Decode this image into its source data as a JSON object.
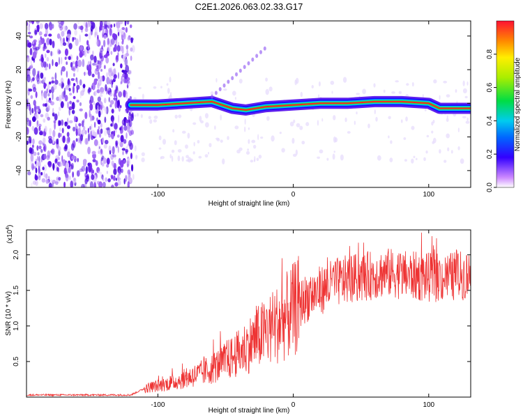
{
  "title": "C2E1.2026.063.02.33.G17",
  "chart_data": [
    {
      "type": "heatmap",
      "xlabel": "Height of straight line (km)",
      "ylabel": "Frequency (Hz)",
      "xlim": [
        -197,
        131
      ],
      "ylim": [
        -50,
        49
      ],
      "xticks": [
        -100,
        0,
        100
      ],
      "yticks": [
        -40,
        -20,
        0,
        20,
        40
      ],
      "noise_region_x": [
        -197,
        -118
      ],
      "signal_track": [
        {
          "x": -120,
          "y": -1
        },
        {
          "x": -100,
          "y": -1
        },
        {
          "x": -80,
          "y": 0
        },
        {
          "x": -60,
          "y": 1
        },
        {
          "x": -45,
          "y": -3
        },
        {
          "x": -35,
          "y": -4
        },
        {
          "x": -20,
          "y": -2
        },
        {
          "x": 0,
          "y": -1
        },
        {
          "x": 20,
          "y": 0
        },
        {
          "x": 40,
          "y": 0
        },
        {
          "x": 60,
          "y": 1
        },
        {
          "x": 80,
          "y": 1
        },
        {
          "x": 100,
          "y": 0
        },
        {
          "x": 108,
          "y": -3
        },
        {
          "x": 131,
          "y": -3
        }
      ],
      "colorbar": {
        "label": "Normalized spectral amplitude",
        "range": [
          0,
          1
        ],
        "ticks": [
          "0.0",
          "0.2",
          "0.4",
          "0.6",
          "0.8"
        ]
      }
    },
    {
      "type": "line",
      "xlabel": "Height of straight line (km)",
      "ylabel": "SNR (10 * v/v)",
      "yscale_label": "(x10",
      "yscale_exp": "4",
      "yscale_close": ")",
      "xlim": [
        -197,
        131
      ],
      "ylim": [
        0,
        2.35
      ],
      "xticks": [
        -100,
        0,
        100
      ],
      "yticks": [
        "0.5",
        "1.0",
        "1.5",
        "2.0"
      ],
      "color": "#ee3333",
      "series": [
        {
          "name": "SNR",
          "x": [
            -197,
            -180,
            -160,
            -140,
            -120,
            -110,
            -100,
            -90,
            -80,
            -70,
            -60,
            -50,
            -40,
            -30,
            -20,
            -10,
            0,
            10,
            20,
            30,
            40,
            50,
            60,
            70,
            80,
            90,
            100,
            110,
            120,
            131
          ],
          "values": [
            0.03,
            0.03,
            0.03,
            0.03,
            0.03,
            0.12,
            0.16,
            0.2,
            0.26,
            0.32,
            0.4,
            0.5,
            0.62,
            0.78,
            0.92,
            1.05,
            1.22,
            1.4,
            1.5,
            1.6,
            1.65,
            1.68,
            1.72,
            1.75,
            1.72,
            1.7,
            1.68,
            1.68,
            1.7,
            1.72
          ]
        }
      ]
    }
  ]
}
